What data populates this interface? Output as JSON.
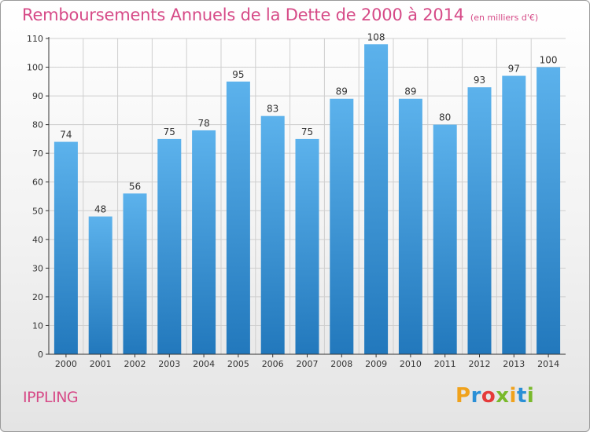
{
  "header": {
    "title": "Remboursements Annuels de la Dette de 2000 à 2014",
    "unit": "(en milliers d'€)"
  },
  "footer": {
    "commune": "IPPLING",
    "logo_text": "Proxiti"
  },
  "colors": {
    "bar_top": "#5cb2ec",
    "bar_bottom": "#2278bc",
    "title": "#d64a87",
    "grid": "#cfcfcf",
    "logo_letters": [
      "#f0a21c",
      "#2a8fd6",
      "#e53a3a",
      "#79b92b",
      "#f0a21c",
      "#2a8fd6",
      "#79b92b"
    ]
  },
  "chart_data": {
    "type": "bar",
    "title": "Remboursements Annuels de la Dette de 2000 à 2014",
    "subtitle": "(en milliers d'€)",
    "categories": [
      "2000",
      "2001",
      "2002",
      "2003",
      "2004",
      "2005",
      "2006",
      "2007",
      "2008",
      "2009",
      "2010",
      "2011",
      "2012",
      "2013",
      "2014"
    ],
    "values": [
      74,
      48,
      56,
      75,
      78,
      95,
      83,
      75,
      89,
      108,
      89,
      80,
      93,
      97,
      100
    ],
    "data_labels": [
      "74",
      "48",
      "56",
      "75",
      "78",
      "95",
      "83",
      "75",
      "89",
      "108",
      "89",
      "80",
      "93",
      "97",
      "100"
    ],
    "ylim": [
      0,
      110
    ],
    "yticks": [
      0,
      10,
      20,
      30,
      40,
      50,
      60,
      70,
      80,
      90,
      100,
      110
    ],
    "grid": true,
    "legend": "none"
  }
}
